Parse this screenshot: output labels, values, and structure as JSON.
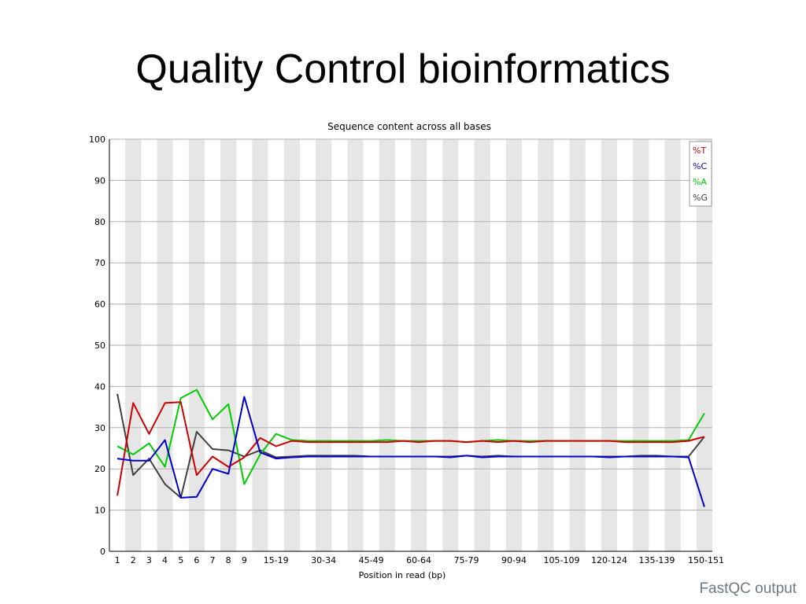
{
  "slide": {
    "title": "Quality Control bioinformatics",
    "caption": "FastQC output"
  },
  "chart_data": {
    "type": "line",
    "title": "Sequence content across all bases",
    "xlabel": "Position in read (bp)",
    "ylabel": "",
    "ylim": [
      0,
      100
    ],
    "y_ticks": [
      0,
      10,
      20,
      30,
      40,
      50,
      60,
      70,
      80,
      90,
      100
    ],
    "grid": true,
    "legend_position": "top-right",
    "categories": [
      "1",
      "2",
      "3",
      "4",
      "5",
      "6",
      "7",
      "8",
      "9",
      "10-14",
      "15-19",
      "20-24",
      "25-29",
      "30-34",
      "35-39",
      "40-44",
      "45-49",
      "50-54",
      "55-59",
      "60-64",
      "65-69",
      "70-74",
      "75-79",
      "80-84",
      "85-89",
      "90-94",
      "95-99",
      "100-104",
      "105-109",
      "110-114",
      "115-119",
      "120-124",
      "125-129",
      "130-134",
      "135-139",
      "140-144",
      "145-149",
      "150-151"
    ],
    "x_tick_labels": [
      "1",
      "2",
      "3",
      "4",
      "5",
      "6",
      "7",
      "8",
      "9",
      "15-19",
      "30-34",
      "45-49",
      "60-64",
      "75-79",
      "90-94",
      "105-109",
      "120-124",
      "135-139",
      "150-151"
    ],
    "series": [
      {
        "name": "%T",
        "color": "#cc0000",
        "values": [
          13.5,
          36,
          28.5,
          36,
          36.2,
          18.5,
          23,
          20.5,
          22.8,
          27.5,
          25.5,
          26.8,
          26.5,
          26.5,
          26.5,
          26.5,
          26.5,
          26.5,
          26.8,
          26.5,
          26.8,
          26.8,
          26.5,
          26.8,
          26.5,
          26.8,
          26.5,
          26.8,
          26.8,
          26.8,
          26.8,
          26.8,
          26.5,
          26.5,
          26.5,
          26.5,
          26.8,
          27.8
        ]
      },
      {
        "name": "%C",
        "color": "#0000cc",
        "values": [
          22.5,
          22,
          22,
          27,
          13,
          13.2,
          20,
          18.8,
          37.5,
          24,
          22.5,
          22.8,
          23,
          23,
          23,
          23,
          23,
          23,
          23,
          23,
          23,
          22.8,
          23.2,
          22.8,
          23,
          23,
          23,
          23,
          23,
          23,
          23,
          22.8,
          23,
          23,
          23,
          23,
          22.8,
          10.8
        ]
      },
      {
        "name": "%A",
        "color": "#00cc00",
        "values": [
          25.5,
          23.5,
          26.2,
          20.5,
          37.2,
          39.2,
          32,
          35.7,
          16.3,
          23.5,
          28.5,
          27,
          26.8,
          26.8,
          26.8,
          26.8,
          26.8,
          27,
          26.8,
          26.8,
          26.8,
          26.8,
          26.5,
          26.8,
          27,
          26.8,
          26.8,
          26.8,
          26.8,
          26.8,
          26.8,
          26.8,
          26.8,
          26.8,
          26.8,
          26.8,
          27,
          33.5
        ]
      },
      {
        "name": "%G",
        "color": "#404040",
        "values": [
          38.2,
          18.5,
          22.5,
          16.3,
          13,
          29,
          24.8,
          24.5,
          23,
          24.5,
          22.8,
          23,
          23.2,
          23.2,
          23.2,
          23.2,
          23,
          23,
          23,
          23,
          23,
          23,
          23.2,
          23,
          23.2,
          23,
          23,
          23,
          23,
          23,
          23,
          23,
          23,
          23.2,
          23.2,
          23,
          23,
          27.8
        ]
      }
    ]
  }
}
